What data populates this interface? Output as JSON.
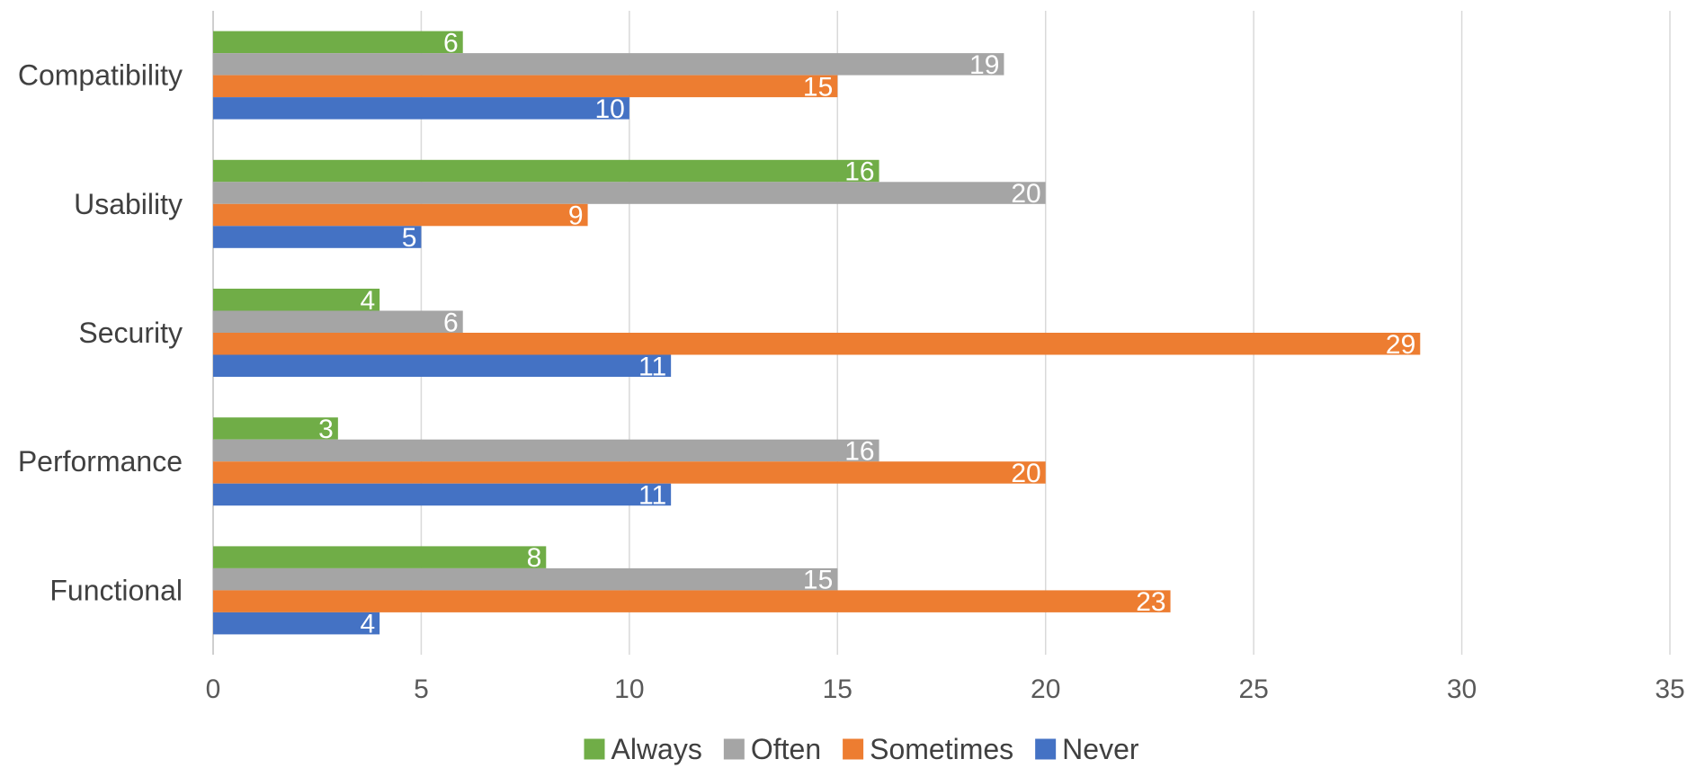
{
  "chart_data": {
    "type": "bar",
    "orientation": "horizontal",
    "title": "",
    "xlabel": "",
    "ylabel": "",
    "categories": [
      "Compatibility",
      "Usability",
      "Security",
      "Performance",
      "Functional"
    ],
    "series": [
      {
        "name": "Always",
        "color": "#70AD47",
        "values": [
          6,
          16,
          4,
          3,
          8
        ]
      },
      {
        "name": "Often",
        "color": "#A5A5A5",
        "values": [
          19,
          20,
          6,
          16,
          15
        ]
      },
      {
        "name": "Sometimes",
        "color": "#ED7D31",
        "values": [
          15,
          9,
          29,
          20,
          23
        ]
      },
      {
        "name": "Never",
        "color": "#4472C4",
        "values": [
          10,
          5,
          11,
          11,
          4
        ]
      }
    ],
    "xlim": [
      0,
      35
    ],
    "xticks": [
      0,
      5,
      10,
      15,
      20,
      25,
      30,
      35
    ],
    "grid": true,
    "data_labels": true,
    "legend_position": "bottom"
  }
}
